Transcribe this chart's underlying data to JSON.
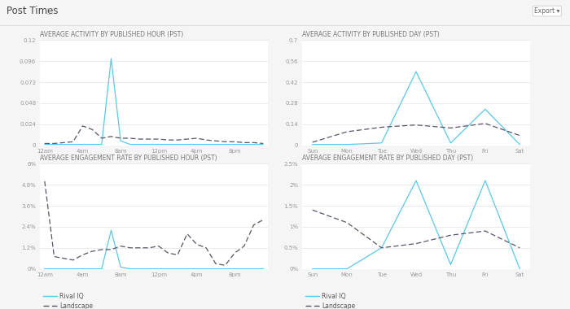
{
  "main_title": "Post Times",
  "bg_color": "#f5f5f5",
  "chart_bg": "#ffffff",
  "chart1_title": "AVERAGE ACTIVITY BY PUBLISHED HOUR (PST)",
  "hour_labels": [
    "12am",
    "4am",
    "8am",
    "12pm",
    "4pm",
    "8pm"
  ],
  "hour_xticks": [
    0,
    4,
    8,
    12,
    16,
    20
  ],
  "hour_x": [
    0,
    1,
    2,
    3,
    4,
    5,
    6,
    7,
    8,
    9,
    10,
    11,
    12,
    13,
    14,
    15,
    16,
    17,
    18,
    19,
    20,
    21,
    22,
    23
  ],
  "rival_iq_hour_activity": [
    0.001,
    0.001,
    0.001,
    0.001,
    0.001,
    0.001,
    0.001,
    0.099,
    0.005,
    0.001,
    0.001,
    0.001,
    0.001,
    0.001,
    0.001,
    0.001,
    0.001,
    0.001,
    0.001,
    0.001,
    0.001,
    0.001,
    0.001,
    0.001
  ],
  "landscape_hour_activity": [
    0.002,
    0.002,
    0.003,
    0.004,
    0.022,
    0.018,
    0.008,
    0.01,
    0.008,
    0.008,
    0.007,
    0.007,
    0.007,
    0.006,
    0.006,
    0.007,
    0.008,
    0.006,
    0.005,
    0.004,
    0.004,
    0.003,
    0.003,
    0.002
  ],
  "chart1_yticks": [
    0,
    0.024,
    0.048,
    0.072,
    0.096,
    0.12
  ],
  "chart1_ylim": [
    0,
    0.12
  ],
  "chart2_title": "AVERAGE ACTIVITY BY PUBLISHED DAY (PST)",
  "day_labels": [
    "Sun",
    "Mon",
    "Tue",
    "Wed",
    "Thu",
    "Fri",
    "Sat"
  ],
  "day_x": [
    0,
    1,
    2,
    3,
    4,
    5,
    6
  ],
  "rival_iq_day_activity": [
    0.005,
    0.005,
    0.015,
    0.49,
    0.015,
    0.24,
    0.005
  ],
  "landscape_day_activity": [
    0.02,
    0.09,
    0.12,
    0.135,
    0.115,
    0.145,
    0.065
  ],
  "chart2_yticks": [
    0,
    0.14,
    0.28,
    0.42,
    0.56,
    0.7
  ],
  "chart2_ylim": [
    0,
    0.7
  ],
  "chart3_title": "AVERAGE ENGAGEMENT RATE BY PUBLISHED HOUR (PST)",
  "rival_iq_hour_engagement": [
    0.0,
    0.0,
    0.0,
    0.0,
    0.0,
    0.0,
    0.0,
    0.022,
    0.001,
    0.0,
    0.0,
    0.0,
    0.0,
    0.0,
    0.0,
    0.0,
    0.0,
    0.0,
    0.0,
    0.0,
    0.0,
    0.0,
    0.0,
    0.0
  ],
  "landscape_hour_engagement": [
    0.05,
    0.007,
    0.006,
    0.005,
    0.008,
    0.01,
    0.011,
    0.011,
    0.013,
    0.012,
    0.012,
    0.012,
    0.013,
    0.009,
    0.008,
    0.02,
    0.014,
    0.012,
    0.003,
    0.002,
    0.009,
    0.013,
    0.025,
    0.028
  ],
  "chart3_ytick_labels": [
    "0%",
    "1.2%",
    "2.4%",
    "3.6%",
    "4.8%",
    "6%"
  ],
  "chart3_ytick_vals": [
    0,
    0.012,
    0.024,
    0.036,
    0.048,
    0.06
  ],
  "chart3_ylim": [
    0,
    0.06
  ],
  "chart4_title": "AVERAGE ENGAGEMENT RATE BY PUBLISHED DAY (PST)",
  "rival_iq_day_engagement": [
    0.0,
    0.0,
    0.005,
    0.021,
    0.001,
    0.021,
    0.0
  ],
  "landscape_day_engagement": [
    0.014,
    0.011,
    0.005,
    0.006,
    0.008,
    0.009,
    0.005
  ],
  "chart4_ytick_labels": [
    "0%",
    "0.5%",
    "1%",
    "1.5%",
    "2%",
    "2.5%"
  ],
  "chart4_ytick_vals": [
    0,
    0.005,
    0.01,
    0.015,
    0.02,
    0.025
  ],
  "chart4_ylim": [
    0,
    0.025
  ],
  "rival_color": "#5bc8e8",
  "landscape_color": "#555566",
  "rival_label": "Rival IQ",
  "landscape_label": "Landscape",
  "title_fs": 5.5,
  "tick_fs": 5.0,
  "legend_fs": 5.5,
  "main_title_fs": 8.5
}
